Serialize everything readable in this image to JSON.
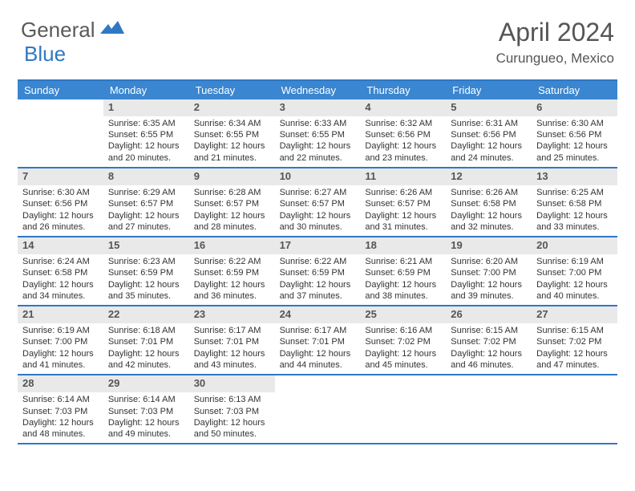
{
  "brand": {
    "part1": "General",
    "part2": "Blue"
  },
  "title": "April 2024",
  "location": "Curungueo, Mexico",
  "colors": {
    "accent": "#3a86d0",
    "rule": "#2f78c4",
    "numbg": "#e9e9e9",
    "text": "#333333"
  },
  "dayNames": [
    "Sunday",
    "Monday",
    "Tuesday",
    "Wednesday",
    "Thursday",
    "Friday",
    "Saturday"
  ],
  "weeks": [
    [
      {
        "n": "",
        "empty": true
      },
      {
        "n": "1",
        "sunrise": "6:35 AM",
        "sunset": "6:55 PM",
        "dlh": 12,
        "dlm": 20
      },
      {
        "n": "2",
        "sunrise": "6:34 AM",
        "sunset": "6:55 PM",
        "dlh": 12,
        "dlm": 21
      },
      {
        "n": "3",
        "sunrise": "6:33 AM",
        "sunset": "6:55 PM",
        "dlh": 12,
        "dlm": 22
      },
      {
        "n": "4",
        "sunrise": "6:32 AM",
        "sunset": "6:56 PM",
        "dlh": 12,
        "dlm": 23
      },
      {
        "n": "5",
        "sunrise": "6:31 AM",
        "sunset": "6:56 PM",
        "dlh": 12,
        "dlm": 24
      },
      {
        "n": "6",
        "sunrise": "6:30 AM",
        "sunset": "6:56 PM",
        "dlh": 12,
        "dlm": 25
      }
    ],
    [
      {
        "n": "7",
        "sunrise": "6:30 AM",
        "sunset": "6:56 PM",
        "dlh": 12,
        "dlm": 26
      },
      {
        "n": "8",
        "sunrise": "6:29 AM",
        "sunset": "6:57 PM",
        "dlh": 12,
        "dlm": 27
      },
      {
        "n": "9",
        "sunrise": "6:28 AM",
        "sunset": "6:57 PM",
        "dlh": 12,
        "dlm": 28
      },
      {
        "n": "10",
        "sunrise": "6:27 AM",
        "sunset": "6:57 PM",
        "dlh": 12,
        "dlm": 30
      },
      {
        "n": "11",
        "sunrise": "6:26 AM",
        "sunset": "6:57 PM",
        "dlh": 12,
        "dlm": 31
      },
      {
        "n": "12",
        "sunrise": "6:26 AM",
        "sunset": "6:58 PM",
        "dlh": 12,
        "dlm": 32
      },
      {
        "n": "13",
        "sunrise": "6:25 AM",
        "sunset": "6:58 PM",
        "dlh": 12,
        "dlm": 33
      }
    ],
    [
      {
        "n": "14",
        "sunrise": "6:24 AM",
        "sunset": "6:58 PM",
        "dlh": 12,
        "dlm": 34
      },
      {
        "n": "15",
        "sunrise": "6:23 AM",
        "sunset": "6:59 PM",
        "dlh": 12,
        "dlm": 35
      },
      {
        "n": "16",
        "sunrise": "6:22 AM",
        "sunset": "6:59 PM",
        "dlh": 12,
        "dlm": 36
      },
      {
        "n": "17",
        "sunrise": "6:22 AM",
        "sunset": "6:59 PM",
        "dlh": 12,
        "dlm": 37
      },
      {
        "n": "18",
        "sunrise": "6:21 AM",
        "sunset": "6:59 PM",
        "dlh": 12,
        "dlm": 38
      },
      {
        "n": "19",
        "sunrise": "6:20 AM",
        "sunset": "7:00 PM",
        "dlh": 12,
        "dlm": 39
      },
      {
        "n": "20",
        "sunrise": "6:19 AM",
        "sunset": "7:00 PM",
        "dlh": 12,
        "dlm": 40
      }
    ],
    [
      {
        "n": "21",
        "sunrise": "6:19 AM",
        "sunset": "7:00 PM",
        "dlh": 12,
        "dlm": 41
      },
      {
        "n": "22",
        "sunrise": "6:18 AM",
        "sunset": "7:01 PM",
        "dlh": 12,
        "dlm": 42
      },
      {
        "n": "23",
        "sunrise": "6:17 AM",
        "sunset": "7:01 PM",
        "dlh": 12,
        "dlm": 43
      },
      {
        "n": "24",
        "sunrise": "6:17 AM",
        "sunset": "7:01 PM",
        "dlh": 12,
        "dlm": 44
      },
      {
        "n": "25",
        "sunrise": "6:16 AM",
        "sunset": "7:02 PM",
        "dlh": 12,
        "dlm": 45
      },
      {
        "n": "26",
        "sunrise": "6:15 AM",
        "sunset": "7:02 PM",
        "dlh": 12,
        "dlm": 46
      },
      {
        "n": "27",
        "sunrise": "6:15 AM",
        "sunset": "7:02 PM",
        "dlh": 12,
        "dlm": 47
      }
    ],
    [
      {
        "n": "28",
        "sunrise": "6:14 AM",
        "sunset": "7:03 PM",
        "dlh": 12,
        "dlm": 48
      },
      {
        "n": "29",
        "sunrise": "6:14 AM",
        "sunset": "7:03 PM",
        "dlh": 12,
        "dlm": 49
      },
      {
        "n": "30",
        "sunrise": "6:13 AM",
        "sunset": "7:03 PM",
        "dlh": 12,
        "dlm": 50
      },
      {
        "n": "",
        "empty": true
      },
      {
        "n": "",
        "empty": true
      },
      {
        "n": "",
        "empty": true
      },
      {
        "n": "",
        "empty": true
      }
    ]
  ],
  "labels": {
    "sunrise": "Sunrise:",
    "sunset": "Sunset:",
    "daylight_pre": "Daylight:",
    "hours": "hours",
    "minutes": "minutes."
  }
}
